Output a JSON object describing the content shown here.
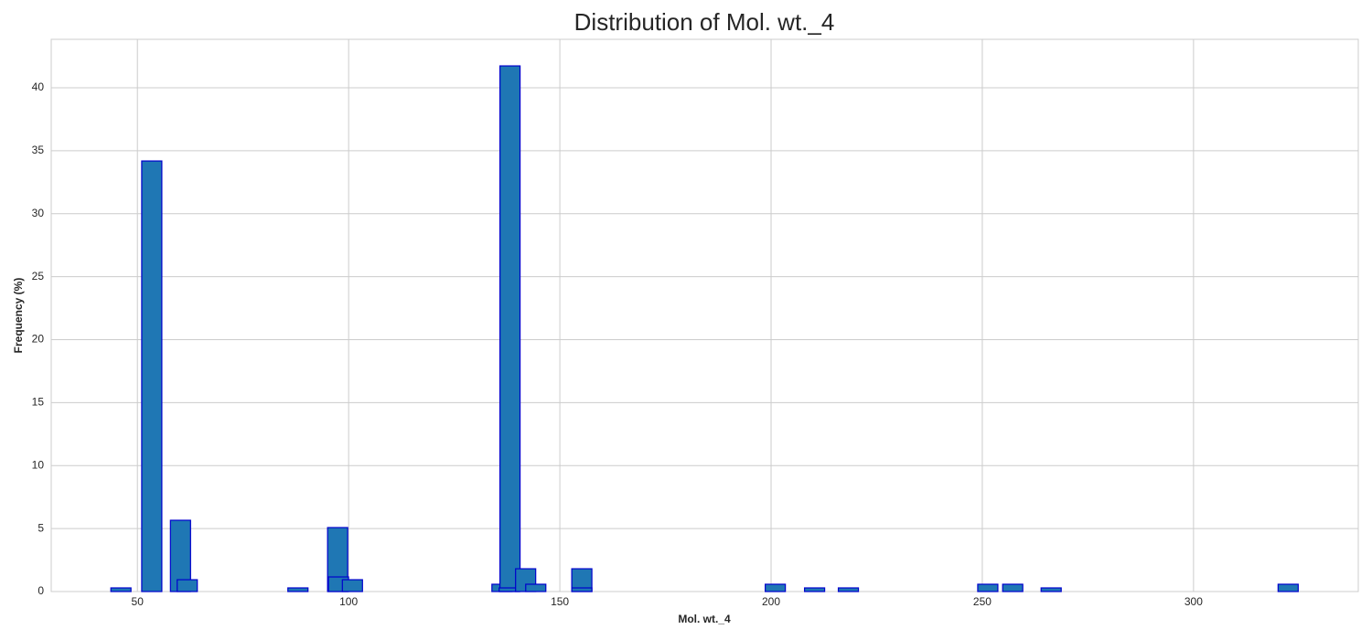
{
  "chart_data": {
    "type": "bar",
    "title": "Distribution of Mol. wt._4",
    "xlabel": "Mol. wt._4",
    "ylabel": "Frequency (%)",
    "x": [
      46.1,
      53.4,
      60.2,
      61.8,
      88.0,
      97.4,
      97.6,
      100.9,
      136.3,
      138.2,
      138.0,
      141.9,
      144.3,
      155.2,
      155.2,
      201.0,
      210.3,
      218.3,
      251.3,
      257.2,
      266.3,
      322.4
    ],
    "values": [
      0.29,
      34.19,
      5.66,
      0.94,
      0.29,
      5.08,
      1.16,
      0.94,
      0.58,
      41.74,
      0.29,
      1.81,
      0.58,
      1.81,
      0.29,
      0.58,
      0.29,
      0.29,
      0.58,
      0.58,
      0.29,
      0.58
    ],
    "color": "#1f77b4",
    "edgecolor": "#0000cd",
    "xlim": [
      29.6,
      339
    ],
    "ylim": [
      0,
      43.85
    ],
    "xticks": [
      50,
      100,
      150,
      200,
      250,
      300
    ],
    "yticks": [
      0,
      5,
      10,
      15,
      20,
      25,
      30,
      35,
      40
    ],
    "grid": true
  }
}
